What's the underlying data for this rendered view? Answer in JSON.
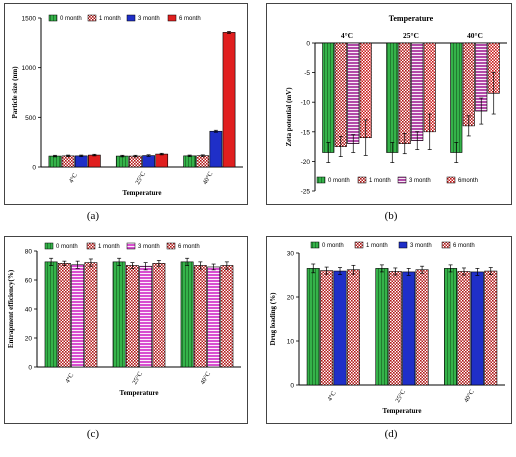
{
  "chart_data": [
    {
      "type": "bar",
      "title": "",
      "xlabel": "Temperature",
      "ylabel": "Particle size (nm)",
      "categories": [
        "4°C",
        "25°C",
        "40°C"
      ],
      "ylim": [
        0,
        1500
      ],
      "yticks": [
        0,
        500,
        1000,
        1500
      ],
      "legend_position": "top",
      "series": [
        {
          "name": "0 month",
          "color": "#35b34a",
          "values": [
            110,
            110,
            112
          ],
          "errors": [
            8,
            8,
            8
          ]
        },
        {
          "name": "1 month",
          "color": "#b01818",
          "values": [
            112,
            110,
            114
          ],
          "errors": [
            8,
            8,
            8
          ]
        },
        {
          "name": "3 month",
          "color": "#1f2fc8",
          "values": [
            112,
            115,
            360
          ],
          "errors": [
            8,
            8,
            10
          ]
        },
        {
          "name": "6 month",
          "color": "#e01f1f",
          "values": [
            120,
            130,
            1355
          ],
          "errors": [
            8,
            8,
            10
          ]
        }
      ]
    },
    {
      "type": "bar",
      "title": "Temperature",
      "xlabel": "",
      "ylabel": "Zeta potential (mV)",
      "categories": [
        "4°C",
        "25°C",
        "40°C"
      ],
      "ylim": [
        -25,
        0
      ],
      "yticks": [
        0,
        -5,
        -10,
        -15,
        -20,
        -25
      ],
      "legend_position": "bottom",
      "series": [
        {
          "name": "0 month",
          "color": "#35b34a",
          "values": [
            -18.5,
            -18.5,
            -18.5
          ],
          "errors": [
            1.7,
            1.7,
            1.7
          ]
        },
        {
          "name": "1 month",
          "color": "#b01818",
          "values": [
            -17.5,
            -17,
            -14
          ],
          "errors": [
            1.7,
            1.7,
            1.7
          ]
        },
        {
          "name": "3 month",
          "color": "#b24aa8",
          "values": [
            -17,
            -16.5,
            -11.5
          ],
          "errors": [
            1.5,
            1.5,
            2.2
          ]
        },
        {
          "name": "6month",
          "color": "#c81818",
          "values": [
            -16,
            -15,
            -8.5
          ],
          "errors": [
            3,
            3,
            3.5
          ]
        }
      ]
    },
    {
      "type": "bar",
      "title": "",
      "xlabel": "Temperature",
      "ylabel": "Entrapment efficiency(%)",
      "categories": [
        "4°C",
        "25°C",
        "40°C"
      ],
      "ylim": [
        0,
        80
      ],
      "yticks": [
        0,
        20,
        40,
        60,
        80
      ],
      "legend_position": "top",
      "series": [
        {
          "name": "0 month",
          "color": "#35b34a",
          "values": [
            72.5,
            72.5,
            72.5
          ],
          "errors": [
            2.5,
            2.5,
            2.5
          ]
        },
        {
          "name": "1 month",
          "color": "#b01818",
          "values": [
            71.5,
            70,
            70
          ],
          "errors": [
            1.5,
            2,
            2.5
          ]
        },
        {
          "name": "3 month",
          "color": "#d84fd0",
          "values": [
            70.5,
            69.5,
            69
          ],
          "errors": [
            2.5,
            2.5,
            2
          ]
        },
        {
          "name": "6 month",
          "color": "#b01818",
          "values": [
            72,
            71.5,
            70
          ],
          "errors": [
            2.5,
            2,
            2.5
          ]
        }
      ]
    },
    {
      "type": "bar",
      "title": "",
      "xlabel": "Temperature",
      "ylabel": "Drug loading (%)",
      "categories": [
        "4°C",
        "25°C",
        "40°C"
      ],
      "ylim": [
        0,
        30
      ],
      "yticks": [
        0,
        10,
        20,
        30
      ],
      "legend_position": "top",
      "series": [
        {
          "name": "0 month",
          "color": "#35b34a",
          "values": [
            26.5,
            26.5,
            26.5
          ],
          "errors": [
            1,
            0.8,
            0.8
          ]
        },
        {
          "name": "1 month",
          "color": "#b01818",
          "values": [
            26,
            25.8,
            25.8
          ],
          "errors": [
            0.8,
            0.8,
            0.8
          ]
        },
        {
          "name": "3 month",
          "color": "#1f2fc8",
          "values": [
            25.9,
            25.7,
            25.7
          ],
          "errors": [
            0.8,
            0.8,
            0.8
          ]
        },
        {
          "name": "6 month",
          "color": "#b01818",
          "values": [
            26.2,
            26.2,
            25.9
          ],
          "errors": [
            1,
            0.8,
            0.8
          ]
        }
      ]
    }
  ],
  "captions": [
    "(a)",
    "(b)",
    "(c)",
    "(d)"
  ]
}
